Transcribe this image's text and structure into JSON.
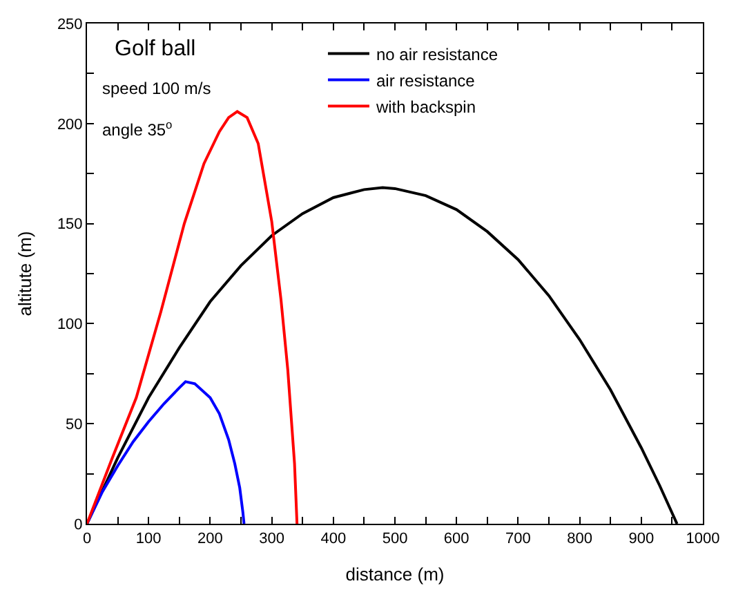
{
  "chart_data": {
    "type": "line",
    "xlabel": "distance (m)",
    "ylabel": "altitute (m)",
    "annotations": [
      "Golf ball",
      "speed 100 m/s",
      "angle 35$^{o}$"
    ],
    "xlim": [
      0,
      1000
    ],
    "ylim": [
      0,
      250
    ],
    "xticks": [
      0,
      {
        "value": 50,
        "label": null
      },
      100,
      {
        "value": 150,
        "label": null
      },
      200,
      {
        "value": 250,
        "label": null
      },
      300,
      {
        "value": 350,
        "label": null
      },
      400,
      {
        "value": 450,
        "label": null
      },
      500,
      {
        "value": 550,
        "label": null
      },
      600,
      {
        "value": 650,
        "label": null
      },
      700,
      {
        "value": 750,
        "label": null
      },
      800,
      {
        "value": 850,
        "label": null
      },
      900,
      {
        "value": 950,
        "label": null
      },
      1000
    ],
    "yticks": [
      0,
      {
        "value": 25,
        "label": null
      },
      50,
      {
        "value": 75,
        "label": null
      },
      100,
      {
        "value": 125,
        "label": null
      },
      150,
      {
        "value": 175,
        "label": null
      },
      200,
      {
        "value": 225,
        "label": null
      },
      250
    ],
    "legend": "top",
    "marker": "none",
    "line_style": "solid",
    "series": [
      {
        "name": "no air resistance",
        "color": "#000000",
        "x": [
          0,
          50,
          100,
          150,
          200,
          250,
          300,
          350,
          400,
          450,
          480,
          500,
          550,
          600,
          650,
          700,
          750,
          800,
          850,
          900,
          930,
          958
        ],
        "values": [
          0,
          33,
          63,
          88,
          111,
          129,
          144,
          155,
          163,
          167,
          168,
          167.5,
          164,
          157,
          146,
          132,
          114,
          92,
          67,
          38,
          19,
          0
        ]
      },
      {
        "name": "air resistance",
        "color": "#0000ff",
        "x": [
          0,
          25,
          50,
          75,
          100,
          125,
          150,
          160,
          175,
          200,
          215,
          230,
          240,
          248,
          253,
          255
        ],
        "values": [
          0,
          16,
          29,
          41,
          51,
          60,
          68,
          71,
          70,
          63,
          55,
          42,
          30,
          18,
          6,
          0
        ]
      },
      {
        "name": "with backspin",
        "color": "#ff0000",
        "x": [
          0,
          40,
          80,
          120,
          158,
          190,
          215,
          230,
          244,
          260,
          278,
          300,
          315,
          326,
          337,
          341
        ],
        "values": [
          0,
          32,
          63,
          106,
          150,
          180,
          196,
          203,
          206,
          203,
          190,
          151,
          112,
          77,
          30,
          0
        ]
      }
    ]
  }
}
